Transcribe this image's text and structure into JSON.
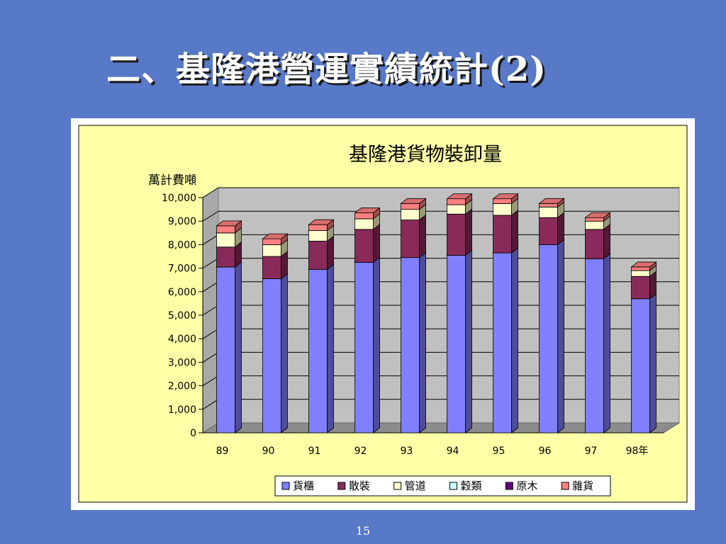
{
  "slide": {
    "title": "二、基隆港營運實績統計(2)",
    "page_number": "15"
  },
  "colors": {
    "slide_background": "#5878c8",
    "chart_area": "#ffffa8",
    "plot_wall": "#c0c0c0",
    "series": [
      "#8080ff",
      "#8a2a5a",
      "#ffffcc",
      "#ccffff",
      "#660080",
      "#ff8080"
    ]
  },
  "chart_data": {
    "type": "bar",
    "stacked": true,
    "three_d": true,
    "title": "基隆港貨物裝卸量",
    "unit_label": "萬計費噸",
    "categories": [
      "89",
      "90",
      "91",
      "92",
      "93",
      "94",
      "95",
      "96",
      "97",
      "98年"
    ],
    "ylim": [
      0,
      10000
    ],
    "yticks": [
      "0",
      "1,000",
      "2,000",
      "3,000",
      "4,000",
      "5,000",
      "6,000",
      "7,000",
      "8,000",
      "9,000",
      "10,000"
    ],
    "grid": true,
    "legend_position": "bottom",
    "series": [
      {
        "name": "貨櫃",
        "values": [
          7050,
          6550,
          6950,
          7250,
          7450,
          7550,
          7650,
          8000,
          7400,
          5700
        ]
      },
      {
        "name": "散裝",
        "values": [
          850,
          950,
          1200,
          1400,
          1600,
          1750,
          1600,
          1150,
          1250,
          950
        ]
      },
      {
        "name": "管道",
        "values": [
          600,
          500,
          450,
          450,
          450,
          400,
          500,
          450,
          350,
          250
        ]
      },
      {
        "name": "穀類",
        "values": [
          0,
          0,
          0,
          0,
          0,
          0,
          0,
          0,
          0,
          0
        ]
      },
      {
        "name": "原木",
        "values": [
          0,
          0,
          0,
          0,
          0,
          0,
          0,
          0,
          0,
          0
        ]
      },
      {
        "name": "雜貨",
        "values": [
          300,
          250,
          250,
          250,
          250,
          250,
          200,
          150,
          150,
          150
        ]
      }
    ]
  }
}
